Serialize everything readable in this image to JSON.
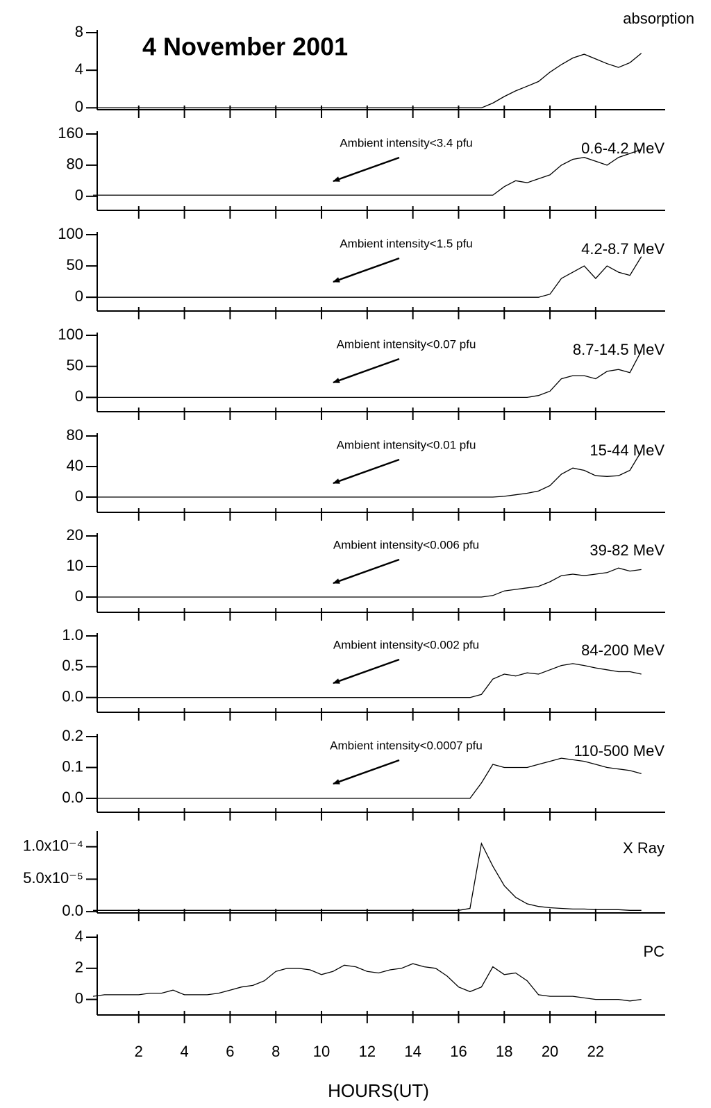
{
  "chart_data": [
    {
      "type": "line",
      "title": "4 November 2001",
      "label": "absorption",
      "color": "#000000",
      "x": [
        0,
        0.5,
        1,
        1.5,
        2,
        2.5,
        3,
        3.5,
        4,
        4.5,
        5,
        5.5,
        6,
        6.5,
        7,
        7.5,
        8,
        8.5,
        9,
        9.5,
        10,
        10.5,
        11,
        11.5,
        12,
        12.5,
        13,
        13.5,
        14,
        14.5,
        15,
        15.5,
        16,
        16.5,
        17,
        17.5,
        18,
        18.5,
        19,
        19.5,
        20,
        20.5,
        21,
        21.5,
        22,
        22.5,
        23,
        23.5,
        24
      ],
      "values": [
        0,
        0,
        0,
        0,
        0,
        0,
        0,
        0,
        0,
        0,
        0,
        0,
        0,
        0,
        0,
        0,
        0,
        0,
        0,
        0,
        0,
        0,
        0,
        0,
        0,
        0,
        0,
        0,
        0,
        0,
        0,
        0,
        0,
        0,
        0,
        0.5,
        1.2,
        1.8,
        2.3,
        2.8,
        3.8,
        4.6,
        5.3,
        5.7,
        5.2,
        4.7,
        4.3,
        4.8,
        5.8
      ],
      "xlim": [
        0,
        24.8
      ],
      "ylim": [
        -0.2,
        8
      ],
      "yticks": [
        0,
        4,
        8
      ]
    },
    {
      "type": "line",
      "label": "0.6-4.2 MeV",
      "annotation": "Ambient intensity<3.4 pfu",
      "color": "#000000",
      "x": [
        0,
        0.5,
        1,
        1.5,
        2,
        2.5,
        3,
        3.5,
        4,
        4.5,
        5,
        5.5,
        6,
        6.5,
        7,
        7.5,
        8,
        8.5,
        9,
        9.5,
        10,
        10.5,
        11,
        11.5,
        12,
        12.5,
        13,
        13.5,
        14,
        14.5,
        15,
        15.5,
        16,
        16.5,
        17,
        17.5,
        18,
        18.5,
        19,
        19.5,
        20,
        20.5,
        21,
        21.5,
        22,
        22.5,
        23,
        23.5,
        24
      ],
      "values": [
        3,
        3,
        3,
        3,
        3,
        3,
        3,
        3,
        3,
        3,
        3,
        3,
        3,
        3,
        3,
        3,
        3,
        3,
        3,
        3,
        3,
        3,
        3,
        3,
        3,
        3,
        3,
        3,
        3,
        3,
        3,
        3,
        3,
        3,
        3,
        3,
        25,
        40,
        35,
        45,
        55,
        80,
        95,
        100,
        90,
        80,
        100,
        110,
        120
      ],
      "xlim": [
        0,
        24.8
      ],
      "ylim": [
        -36,
        160
      ],
      "yticks": [
        0,
        80,
        160
      ]
    },
    {
      "type": "line",
      "label": "4.2-8.7 MeV",
      "annotation": "Ambient intensity<1.5 pfu",
      "color": "#000000",
      "x": [
        0,
        0.5,
        1,
        1.5,
        2,
        2.5,
        3,
        3.5,
        4,
        4.5,
        5,
        5.5,
        6,
        6.5,
        7,
        7.5,
        8,
        8.5,
        9,
        9.5,
        10,
        10.5,
        11,
        11.5,
        12,
        12.5,
        13,
        13.5,
        14,
        14.5,
        15,
        15.5,
        16,
        16.5,
        17,
        17.5,
        18,
        18.5,
        19,
        19.5,
        20,
        20.5,
        21,
        21.5,
        22,
        22.5,
        23,
        23.5,
        24
      ],
      "values": [
        0,
        0,
        0,
        0,
        0,
        0,
        0,
        0,
        0,
        0,
        0,
        0,
        0,
        0,
        0,
        0,
        0,
        0,
        0,
        0,
        0,
        0,
        0,
        0,
        0,
        0,
        0,
        0,
        0,
        0,
        0,
        0,
        0,
        0,
        0,
        0,
        0,
        0,
        0,
        0,
        5,
        30,
        40,
        50,
        30,
        50,
        40,
        35,
        65
      ],
      "xlim": [
        0,
        24.8
      ],
      "ylim": [
        -22,
        100
      ],
      "yticks": [
        0,
        50,
        100
      ]
    },
    {
      "type": "line",
      "label": "8.7-14.5 MeV",
      "annotation": "Ambient intensity<0.07 pfu",
      "color": "#000000",
      "x": [
        0,
        0.5,
        1,
        1.5,
        2,
        2.5,
        3,
        3.5,
        4,
        4.5,
        5,
        5.5,
        6,
        6.5,
        7,
        7.5,
        8,
        8.5,
        9,
        9.5,
        10,
        10.5,
        11,
        11.5,
        12,
        12.5,
        13,
        13.5,
        14,
        14.5,
        15,
        15.5,
        16,
        16.5,
        17,
        17.5,
        18,
        18.5,
        19,
        19.5,
        20,
        20.5,
        21,
        21.5,
        22,
        22.5,
        23,
        23.5,
        24
      ],
      "values": [
        0,
        0,
        0,
        0,
        0,
        0,
        0,
        0,
        0,
        0,
        0,
        0,
        0,
        0,
        0,
        0,
        0,
        0,
        0,
        0,
        0,
        0,
        0,
        0,
        0,
        0,
        0,
        0,
        0,
        0,
        0,
        0,
        0,
        0,
        0,
        0,
        0,
        0,
        0,
        3,
        10,
        30,
        35,
        35,
        30,
        42,
        45,
        40,
        75
      ],
      "xlim": [
        0,
        24.8
      ],
      "ylim": [
        -23,
        100
      ],
      "yticks": [
        0,
        50,
        100
      ]
    },
    {
      "type": "line",
      "label": "15-44 MeV",
      "annotation": "Ambient intensity<0.01 pfu",
      "color": "#000000",
      "x": [
        0,
        0.5,
        1,
        1.5,
        2,
        2.5,
        3,
        3.5,
        4,
        4.5,
        5,
        5.5,
        6,
        6.5,
        7,
        7.5,
        8,
        8.5,
        9,
        9.5,
        10,
        10.5,
        11,
        11.5,
        12,
        12.5,
        13,
        13.5,
        14,
        14.5,
        15,
        15.5,
        16,
        16.5,
        17,
        17.5,
        18,
        18.5,
        19,
        19.5,
        20,
        20.5,
        21,
        21.5,
        22,
        22.5,
        23,
        23.5,
        24
      ],
      "values": [
        0,
        0,
        0,
        0,
        0,
        0,
        0,
        0,
        0,
        0,
        0,
        0,
        0,
        0,
        0,
        0,
        0,
        0,
        0,
        0,
        0,
        0,
        0,
        0,
        0,
        0,
        0,
        0,
        0,
        0,
        0,
        0,
        0,
        0,
        0,
        0,
        1,
        3,
        5,
        8,
        15,
        30,
        38,
        35,
        28,
        27,
        28,
        35,
        60
      ],
      "xlim": [
        0,
        24.8
      ],
      "ylim": [
        -20,
        80
      ],
      "yticks": [
        0,
        40,
        80
      ]
    },
    {
      "type": "line",
      "label": "39-82 MeV",
      "annotation": "Ambient intensity<0.006 pfu",
      "color": "#000000",
      "x": [
        0,
        0.5,
        1,
        1.5,
        2,
        2.5,
        3,
        3.5,
        4,
        4.5,
        5,
        5.5,
        6,
        6.5,
        7,
        7.5,
        8,
        8.5,
        9,
        9.5,
        10,
        10.5,
        11,
        11.5,
        12,
        12.5,
        13,
        13.5,
        14,
        14.5,
        15,
        15.5,
        16,
        16.5,
        17,
        17.5,
        18,
        18.5,
        19,
        19.5,
        20,
        20.5,
        21,
        21.5,
        22,
        22.5,
        23,
        23.5,
        24
      ],
      "values": [
        0,
        0,
        0,
        0,
        0,
        0,
        0,
        0,
        0,
        0,
        0,
        0,
        0,
        0,
        0,
        0,
        0,
        0,
        0,
        0,
        0,
        0,
        0,
        0,
        0,
        0,
        0,
        0,
        0,
        0,
        0,
        0,
        0,
        0,
        0,
        0.5,
        2,
        2.5,
        3,
        3.5,
        5,
        7,
        7.5,
        7,
        7.5,
        8,
        9.5,
        8.5,
        9
      ],
      "xlim": [
        0,
        24.8
      ],
      "ylim": [
        -5,
        20
      ],
      "yticks": [
        0,
        10,
        20
      ]
    },
    {
      "type": "line",
      "label": "84-200 MeV",
      "annotation": "Ambient intensity<0.002 pfu",
      "color": "#000000",
      "x": [
        0,
        0.5,
        1,
        1.5,
        2,
        2.5,
        3,
        3.5,
        4,
        4.5,
        5,
        5.5,
        6,
        6.5,
        7,
        7.5,
        8,
        8.5,
        9,
        9.5,
        10,
        10.5,
        11,
        11.5,
        12,
        12.5,
        13,
        13.5,
        14,
        14.5,
        15,
        15.5,
        16,
        16.5,
        17,
        17.5,
        18,
        18.5,
        19,
        19.5,
        20,
        20.5,
        21,
        21.5,
        22,
        22.5,
        23,
        23.5,
        24
      ],
      "values": [
        0,
        0,
        0,
        0,
        0,
        0,
        0,
        0,
        0,
        0,
        0,
        0,
        0,
        0,
        0,
        0,
        0,
        0,
        0,
        0,
        0,
        0,
        0,
        0,
        0,
        0,
        0,
        0,
        0,
        0,
        0,
        0,
        0,
        0,
        0.05,
        0.3,
        0.38,
        0.35,
        0.4,
        0.38,
        0.45,
        0.52,
        0.55,
        0.52,
        0.48,
        0.45,
        0.42,
        0.42,
        0.38
      ],
      "xlim": [
        0,
        24.8
      ],
      "ylim": [
        -0.24,
        1.0
      ],
      "yticks": [
        {
          "value": 0,
          "label": "0.0"
        },
        {
          "value": 0.5,
          "label": "0.5"
        },
        {
          "value": 1,
          "label": "1.0"
        }
      ]
    },
    {
      "type": "line",
      "label": "110-500 MeV",
      "annotation": "Ambient intensity<0.0007 pfu",
      "color": "#000000",
      "x": [
        0,
        0.5,
        1,
        1.5,
        2,
        2.5,
        3,
        3.5,
        4,
        4.5,
        5,
        5.5,
        6,
        6.5,
        7,
        7.5,
        8,
        8.5,
        9,
        9.5,
        10,
        10.5,
        11,
        11.5,
        12,
        12.5,
        13,
        13.5,
        14,
        14.5,
        15,
        15.5,
        16,
        16.5,
        17,
        17.5,
        18,
        18.5,
        19,
        19.5,
        20,
        20.5,
        21,
        21.5,
        22,
        22.5,
        23,
        23.5,
        24
      ],
      "values": [
        0,
        0,
        0,
        0,
        0,
        0,
        0,
        0,
        0,
        0,
        0,
        0,
        0,
        0,
        0,
        0,
        0,
        0,
        0,
        0,
        0,
        0,
        0,
        0,
        0,
        0,
        0,
        0,
        0,
        0,
        0,
        0,
        0,
        0,
        0.05,
        0.11,
        0.1,
        0.1,
        0.1,
        0.11,
        0.12,
        0.13,
        0.125,
        0.12,
        0.11,
        0.1,
        0.095,
        0.09,
        0.08
      ],
      "xlim": [
        0,
        24.8
      ],
      "ylim": [
        -0.045,
        0.2
      ],
      "yticks": [
        {
          "value": 0,
          "label": "0.0"
        },
        {
          "value": 0.1,
          "label": "0.1"
        },
        {
          "value": 0.2,
          "label": "0.2"
        }
      ]
    },
    {
      "type": "line",
      "label": "X Ray",
      "color": "#000000",
      "x": [
        0,
        0.5,
        1,
        1.5,
        2,
        2.5,
        3,
        3.5,
        4,
        4.5,
        5,
        5.5,
        6,
        6.5,
        7,
        7.5,
        8,
        8.5,
        9,
        9.5,
        10,
        10.5,
        11,
        11.5,
        12,
        12.5,
        13,
        13.5,
        14,
        14.5,
        15,
        15.5,
        16,
        16.5,
        17,
        17.5,
        18,
        18.5,
        19,
        19.5,
        20,
        20.5,
        21,
        21.5,
        22,
        22.5,
        23,
        23.5,
        24
      ],
      "values": [
        2e-06,
        2e-06,
        2e-06,
        2e-06,
        2e-06,
        2e-06,
        2e-06,
        2e-06,
        2e-06,
        2e-06,
        2e-06,
        2e-06,
        2e-06,
        2e-06,
        2e-06,
        2e-06,
        2e-06,
        2e-06,
        2e-06,
        2e-06,
        2e-06,
        2e-06,
        2e-06,
        2e-06,
        2e-06,
        2e-06,
        2e-06,
        2e-06,
        2e-06,
        2e-06,
        2e-06,
        2e-06,
        2e-06,
        5e-06,
        0.000105,
        7e-05,
        4e-05,
        2.2e-05,
        1.2e-05,
        8e-06,
        6e-06,
        5e-06,
        4e-06,
        4e-06,
        3e-06,
        3e-06,
        3e-06,
        2e-06,
        2e-06
      ],
      "xlim": [
        0,
        24.8
      ],
      "ylim": [
        -2e-06,
        0.00012
      ],
      "yticks": [
        {
          "value": 0,
          "label": "0.0"
        },
        {
          "value": 5e-05,
          "label": "5.0x10⁻⁵"
        },
        {
          "value": 0.0001,
          "label": "1.0x10⁻⁴"
        }
      ]
    },
    {
      "type": "line",
      "label": "PC",
      "color": "#000000",
      "xlabel": "HOURS(UT)",
      "x": [
        0,
        0.5,
        1,
        1.5,
        2,
        2.5,
        3,
        3.5,
        4,
        4.5,
        5,
        5.5,
        6,
        6.5,
        7,
        7.5,
        8,
        8.5,
        9,
        9.5,
        10,
        10.5,
        11,
        11.5,
        12,
        12.5,
        13,
        13.5,
        14,
        14.5,
        15,
        15.5,
        16,
        16.5,
        17,
        17.5,
        18,
        18.5,
        19,
        19.5,
        20,
        20.5,
        21,
        21.5,
        22,
        22.5,
        23,
        23.5,
        24
      ],
      "values": [
        0.2,
        0.3,
        0.3,
        0.3,
        0.3,
        0.4,
        0.4,
        0.6,
        0.3,
        0.3,
        0.3,
        0.4,
        0.6,
        0.8,
        0.9,
        1.2,
        1.8,
        2.0,
        2.0,
        1.9,
        1.6,
        1.8,
        2.2,
        2.1,
        1.8,
        1.7,
        1.9,
        2.0,
        2.3,
        2.1,
        2.0,
        1.5,
        0.8,
        0.5,
        0.8,
        2.1,
        1.6,
        1.7,
        1.2,
        0.3,
        0.2,
        0.2,
        0.2,
        0.1,
        0.0,
        0.0,
        0.0,
        -0.1,
        0.0
      ],
      "xlim": [
        0,
        24.8
      ],
      "ylim": [
        -1,
        4
      ],
      "yticks": [
        0,
        2,
        4
      ],
      "xticks": [
        2,
        4,
        6,
        8,
        10,
        12,
        14,
        16,
        18,
        20,
        22
      ]
    }
  ]
}
